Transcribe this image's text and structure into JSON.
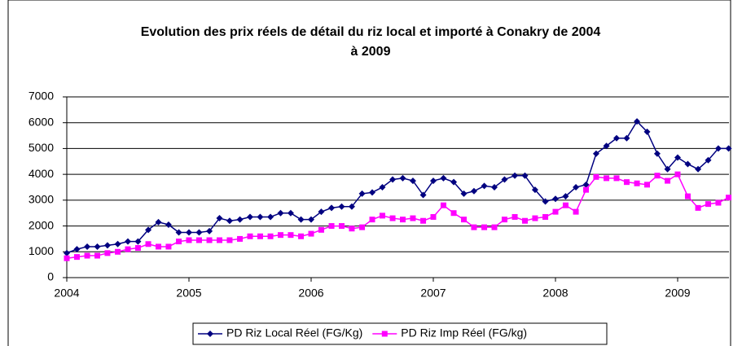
{
  "chart_data": {
    "type": "line",
    "title": "Evolution des prix réels de détail du riz local et importé à Conakry de 2004 à 2009",
    "x": [
      2004,
      2004.083,
      2004.167,
      2004.25,
      2004.333,
      2004.417,
      2004.5,
      2004.583,
      2004.667,
      2004.75,
      2004.833,
      2004.917,
      2005,
      2005.083,
      2005.167,
      2005.25,
      2005.333,
      2005.417,
      2005.5,
      2005.583,
      2005.667,
      2005.75,
      2005.833,
      2005.917,
      2006,
      2006.083,
      2006.167,
      2006.25,
      2006.333,
      2006.417,
      2006.5,
      2006.583,
      2006.667,
      2006.75,
      2006.833,
      2006.917,
      2007,
      2007.083,
      2007.167,
      2007.25,
      2007.333,
      2007.417,
      2007.5,
      2007.583,
      2007.667,
      2007.75,
      2007.833,
      2007.917,
      2008,
      2008.083,
      2008.167,
      2008.25,
      2008.333,
      2008.417,
      2008.5,
      2008.583,
      2008.667,
      2008.75,
      2008.833,
      2008.917,
      2009,
      2009.083,
      2009.167,
      2009.25,
      2009.333,
      2009.417
    ],
    "series": [
      {
        "name": "PD Riz Local Réel (FG/Kg)",
        "color": "#000080",
        "marker": "diamond",
        "values": [
          950,
          1100,
          1200,
          1200,
          1250,
          1300,
          1400,
          1400,
          1850,
          2150,
          2050,
          1750,
          1750,
          1750,
          1800,
          2300,
          2200,
          2250,
          2350,
          2350,
          2350,
          2500,
          2500,
          2250,
          2250,
          2550,
          2700,
          2750,
          2750,
          3250,
          3300,
          3500,
          3800,
          3850,
          3750,
          3200,
          3750,
          3850,
          3700,
          3250,
          3350,
          3550,
          3500,
          3800,
          3950,
          3950,
          3400,
          2950,
          3050,
          3150,
          3500,
          3600,
          4800,
          5100,
          5400,
          5400,
          6050,
          5650,
          4800,
          4200,
          4650,
          4400,
          4200,
          4550,
          5000,
          5000
        ]
      },
      {
        "name": "PD Riz Imp Réel (FG/kg)",
        "color": "#ff00ff",
        "marker": "square",
        "values": [
          750,
          800,
          850,
          850,
          950,
          1000,
          1100,
          1150,
          1300,
          1200,
          1200,
          1400,
          1450,
          1450,
          1450,
          1450,
          1450,
          1500,
          1600,
          1600,
          1600,
          1650,
          1650,
          1600,
          1700,
          1850,
          2000,
          2000,
          1900,
          1950,
          2250,
          2400,
          2300,
          2250,
          2300,
          2200,
          2350,
          2800,
          2500,
          2250,
          1950,
          1950,
          1950,
          2250,
          2350,
          2200,
          2300,
          2350,
          2550,
          2800,
          2550,
          3400,
          3900,
          3850,
          3850,
          3700,
          3650,
          3600,
          3950,
          3750,
          4000,
          3150,
          2700,
          2850,
          2900,
          3100
        ]
      }
    ],
    "xlim": [
      2004,
      2009.42
    ],
    "xticks": [
      2004,
      2005,
      2006,
      2007,
      2008,
      2009
    ],
    "ylim": [
      0,
      7000
    ],
    "yticks": [
      0,
      1000,
      2000,
      3000,
      4000,
      5000,
      6000,
      7000
    ],
    "grid": true,
    "legend": "bottom"
  }
}
